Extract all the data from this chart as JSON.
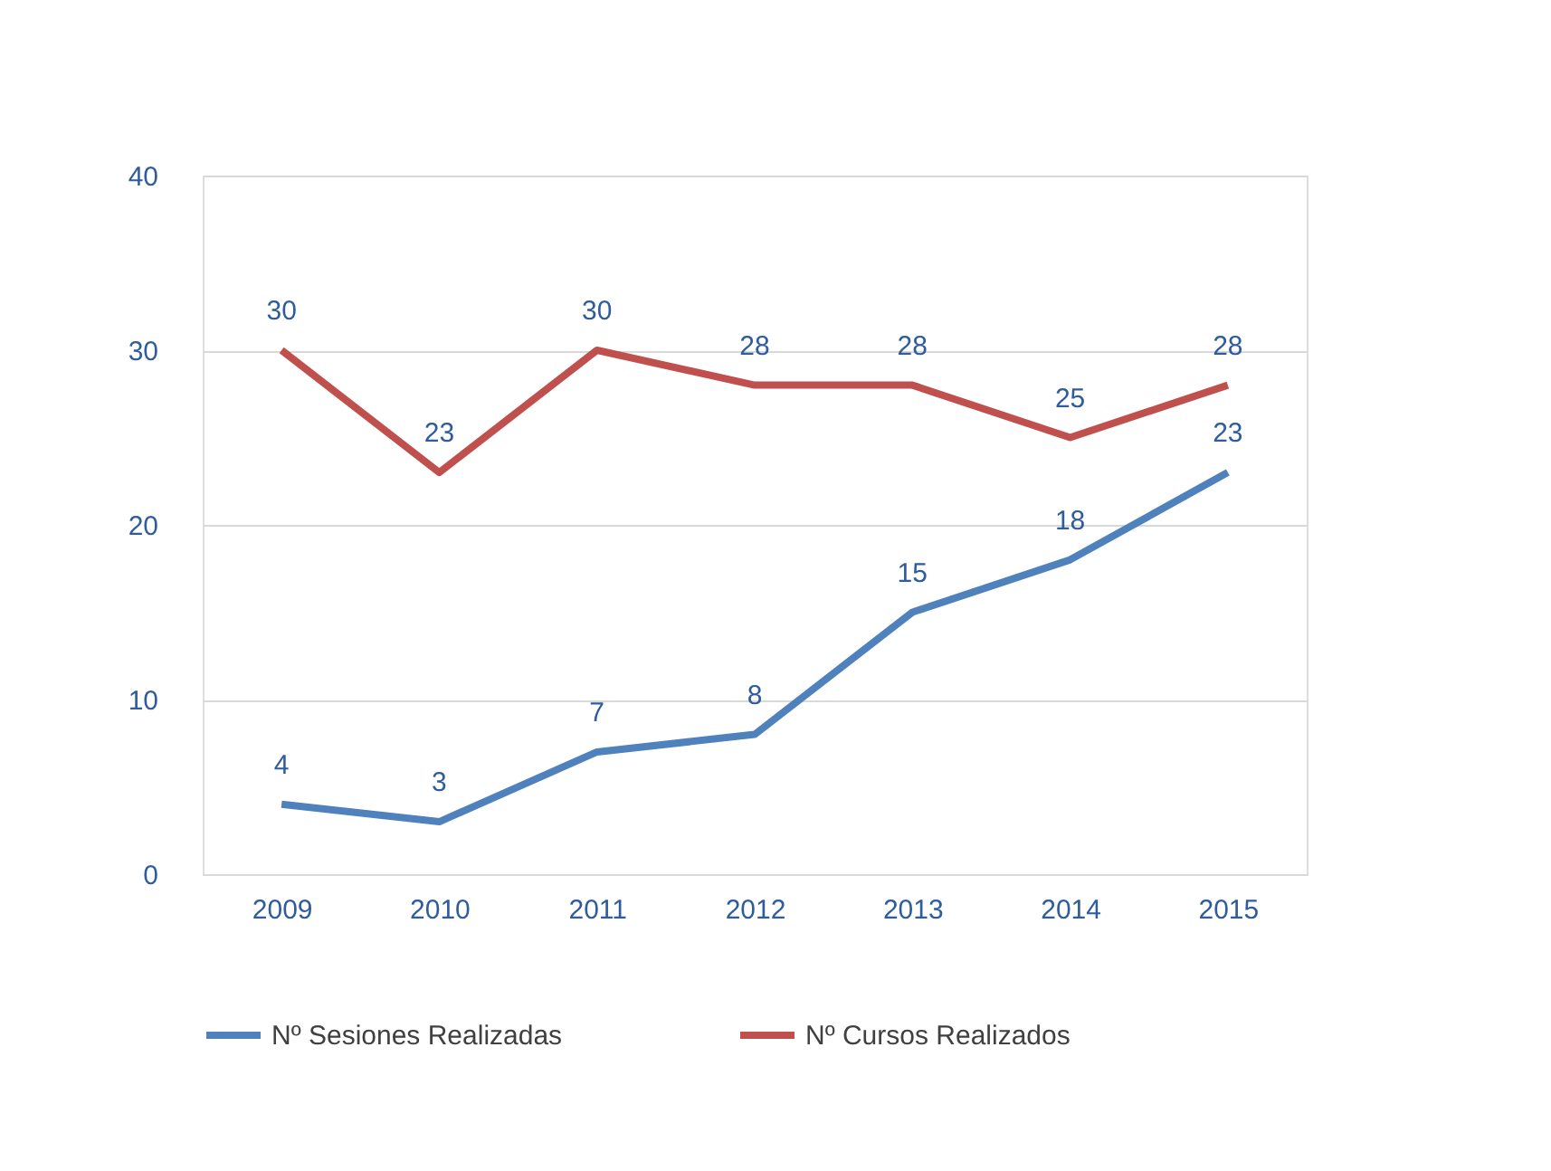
{
  "chart_data": {
    "type": "line",
    "categories": [
      "2009",
      "2010",
      "2011",
      "2012",
      "2013",
      "2014",
      "2015"
    ],
    "series": [
      {
        "name": "Nº Sesiones Realizadas",
        "color": "#4f81bd",
        "values": [
          4,
          3,
          7,
          8,
          15,
          18,
          23
        ]
      },
      {
        "name": "Nº Cursos Realizados",
        "color": "#c0504d",
        "values": [
          30,
          23,
          30,
          28,
          28,
          25,
          28
        ]
      }
    ],
    "ylim": [
      0,
      40
    ],
    "yticks": [
      0,
      10,
      20,
      30,
      40
    ],
    "grid": "y",
    "legend": "bottom",
    "data_labels": true,
    "marker": "none",
    "line_style": "solid"
  }
}
